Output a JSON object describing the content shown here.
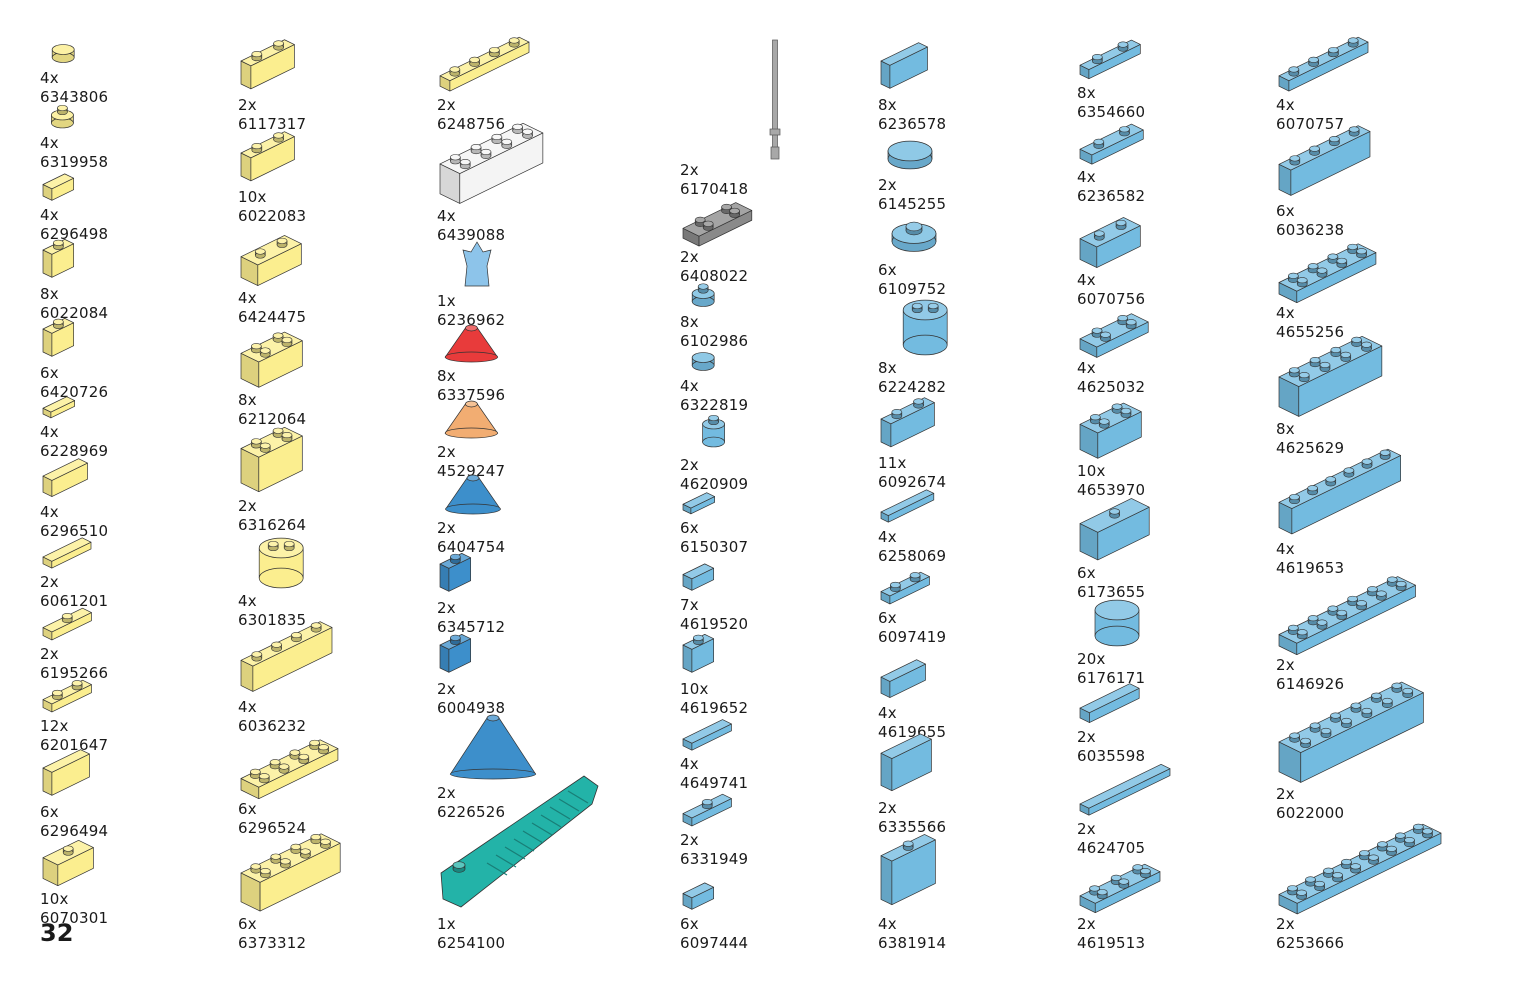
{
  "page_number": "32",
  "colors": {
    "yellow": "#fbee8f",
    "blue": "#73bbe0",
    "white": "#f4f4f4",
    "grey": "#a8a8a8",
    "darkgrey": "#8a8a8a",
    "teal": "#23b3a8",
    "red": "#e83b3b",
    "orange": "#f2ad72",
    "darkblue": "#3d8fcb",
    "clear-blue": "#8dc4ea"
  },
  "columns": [
    [
      {
        "qty": "4x",
        "code": "6343806",
        "color": "yellow",
        "shape": "round-tile-1x1"
      },
      {
        "qty": "4x",
        "code": "6319958",
        "color": "yellow",
        "shape": "round-plate-1x1"
      },
      {
        "qty": "4x",
        "code": "6296498",
        "color": "yellow",
        "shape": "slope-small"
      },
      {
        "qty": "8x",
        "code": "6022084",
        "color": "yellow",
        "shape": "brick-1x1"
      },
      {
        "qty": "6x",
        "code": "6420726",
        "color": "yellow",
        "shape": "brick-1x1-stud-side"
      },
      {
        "qty": "4x",
        "code": "6228969",
        "color": "yellow",
        "shape": "wedge-tile"
      },
      {
        "qty": "4x",
        "code": "6296510",
        "color": "yellow",
        "shape": "slope-1x2"
      },
      {
        "qty": "2x",
        "code": "6061201",
        "color": "yellow",
        "shape": "tile-1x2"
      },
      {
        "qty": "2x",
        "code": "6195266",
        "color": "yellow",
        "shape": "jumper-plate"
      },
      {
        "qty": "12x",
        "code": "6201647",
        "color": "yellow",
        "shape": "plate-1x2"
      },
      {
        "qty": "6x",
        "code": "6296494",
        "color": "yellow",
        "shape": "curved-slope"
      },
      {
        "qty": "10x",
        "code": "6070301",
        "color": "yellow",
        "shape": "slope-2x2-small"
      }
    ],
    [
      {
        "qty": "2x",
        "code": "6117317",
        "color": "yellow",
        "shape": "brick-1x2-holes"
      },
      {
        "qty": "10x",
        "code": "6022083",
        "color": "yellow",
        "shape": "brick-1x2"
      },
      {
        "qty": "4x",
        "code": "6424475",
        "color": "yellow",
        "shape": "slope-inverted-2x2"
      },
      {
        "qty": "8x",
        "code": "6212064",
        "color": "yellow",
        "shape": "brick-2x2"
      },
      {
        "qty": "2x",
        "code": "6316264",
        "color": "yellow",
        "shape": "brick-2x2-side-studs"
      },
      {
        "qty": "4x",
        "code": "6301835",
        "color": "yellow",
        "shape": "round-brick-2x2"
      },
      {
        "qty": "4x",
        "code": "6036232",
        "color": "yellow",
        "shape": "brick-1x4"
      },
      {
        "qty": "6x",
        "code": "6296524",
        "color": "yellow",
        "shape": "plate-2x4"
      },
      {
        "qty": "6x",
        "code": "6373312",
        "color": "yellow",
        "shape": "brick-2x4"
      }
    ],
    [
      {
        "qty": "2x",
        "code": "6248756",
        "color": "yellow",
        "shape": "plate-1x4"
      },
      {
        "qty": "4x",
        "code": "6439088",
        "color": "white",
        "shape": "brick-2x4"
      },
      {
        "qty": "1x",
        "code": "6236962",
        "color": "clear-blue",
        "shape": "crystal"
      },
      {
        "qty": "8x",
        "code": "6337596",
        "color": "red",
        "shape": "cone-small"
      },
      {
        "qty": "2x",
        "code": "4529247",
        "color": "orange",
        "shape": "cone-small"
      },
      {
        "qty": "2x",
        "code": "6404754",
        "color": "darkblue",
        "shape": "cone-small"
      },
      {
        "qty": "2x",
        "code": "6345712",
        "color": "darkblue",
        "shape": "brick-1x1-stud-side"
      },
      {
        "qty": "2x",
        "code": "6004938",
        "color": "darkblue",
        "shape": "brick-1x1-stud-side"
      },
      {
        "qty": "2x",
        "code": "6226526",
        "color": "darkblue",
        "shape": "cone-large"
      },
      {
        "qty": "1x",
        "code": "6254100",
        "color": "teal",
        "shape": "brick-separator"
      }
    ],
    [
      {
        "qty": "2x",
        "code": "6170418",
        "color": "grey",
        "shape": "bar"
      },
      {
        "qty": "2x",
        "code": "6408022",
        "color": "darkgrey",
        "shape": "wheel-holder"
      },
      {
        "qty": "8x",
        "code": "6102986",
        "color": "blue",
        "shape": "round-plate-1x1"
      },
      {
        "qty": "4x",
        "code": "6322819",
        "color": "blue",
        "shape": "round-tile-1x1"
      },
      {
        "qty": "2x",
        "code": "4620909",
        "color": "blue",
        "shape": "round-brick-1x1"
      },
      {
        "qty": "6x",
        "code": "6150307",
        "color": "blue",
        "shape": "wedge-tile"
      },
      {
        "qty": "7x",
        "code": "4619520",
        "color": "blue",
        "shape": "slope-small"
      },
      {
        "qty": "10x",
        "code": "4619652",
        "color": "blue",
        "shape": "brick-1x1"
      },
      {
        "qty": "4x",
        "code": "4649741",
        "color": "blue",
        "shape": "tile-1x2"
      },
      {
        "qty": "2x",
        "code": "6331949",
        "color": "blue",
        "shape": "jumper-plate"
      },
      {
        "qty": "6x",
        "code": "6097444",
        "color": "blue",
        "shape": "slope-small"
      }
    ],
    [
      {
        "qty": "8x",
        "code": "6236578",
        "color": "blue",
        "shape": "curved-slope"
      },
      {
        "qty": "2x",
        "code": "6145255",
        "color": "blue",
        "shape": "round-tile-2x2"
      },
      {
        "qty": "6x",
        "code": "6109752",
        "color": "blue",
        "shape": "round-plate-2x2"
      },
      {
        "qty": "8x",
        "code": "6224282",
        "color": "blue",
        "shape": "round-brick-2x2"
      },
      {
        "qty": "11x",
        "code": "6092674",
        "color": "blue",
        "shape": "brick-1x2"
      },
      {
        "qty": "4x",
        "code": "6258069",
        "color": "blue",
        "shape": "arc-tile"
      },
      {
        "qty": "6x",
        "code": "6097419",
        "color": "blue",
        "shape": "plate-1x2"
      },
      {
        "qty": "4x",
        "code": "4619655",
        "color": "blue",
        "shape": "slope-1x2"
      },
      {
        "qty": "2x",
        "code": "6335566",
        "color": "blue",
        "shape": "arch-curve"
      },
      {
        "qty": "4x",
        "code": "6381914",
        "color": "blue",
        "shape": "slope-tall"
      }
    ],
    [
      {
        "qty": "8x",
        "code": "6354660",
        "color": "blue",
        "shape": "plate-clip"
      },
      {
        "qty": "4x",
        "code": "6236582",
        "color": "blue",
        "shape": "plate-handle"
      },
      {
        "qty": "4x",
        "code": "6070756",
        "color": "blue",
        "shape": "slope-inverted-2x2"
      },
      {
        "qty": "4x",
        "code": "4625032",
        "color": "blue",
        "shape": "plate-2x2"
      },
      {
        "qty": "10x",
        "code": "4653970",
        "color": "blue",
        "shape": "brick-2x2"
      },
      {
        "qty": "6x",
        "code": "6173655",
        "color": "blue",
        "shape": "slope-2x2"
      },
      {
        "qty": "20x",
        "code": "6176171",
        "color": "blue",
        "shape": "round-corner"
      },
      {
        "qty": "2x",
        "code": "6035598",
        "color": "blue",
        "shape": "curved-tile"
      },
      {
        "qty": "2x",
        "code": "4624705",
        "color": "blue",
        "shape": "tile-1x4"
      },
      {
        "qty": "2x",
        "code": "4619513",
        "color": "blue",
        "shape": "plate-2x3"
      }
    ],
    [
      {
        "qty": "4x",
        "code": "6070757",
        "color": "blue",
        "shape": "plate-1x4"
      },
      {
        "qty": "6x",
        "code": "6036238",
        "color": "blue",
        "shape": "brick-1x4"
      },
      {
        "qty": "4x",
        "code": "4655256",
        "color": "blue",
        "shape": "plate-2x4"
      },
      {
        "qty": "8x",
        "code": "4625629",
        "color": "blue",
        "shape": "brick-2x4"
      },
      {
        "qty": "4x",
        "code": "4619653",
        "color": "blue",
        "shape": "brick-1x6"
      },
      {
        "qty": "2x",
        "code": "6146926",
        "color": "blue",
        "shape": "plate-2x6"
      },
      {
        "qty": "2x",
        "code": "6022000",
        "color": "blue",
        "shape": "brick-2x6"
      },
      {
        "qty": "2x",
        "code": "6253666",
        "color": "blue",
        "shape": "plate-2x8"
      }
    ]
  ]
}
